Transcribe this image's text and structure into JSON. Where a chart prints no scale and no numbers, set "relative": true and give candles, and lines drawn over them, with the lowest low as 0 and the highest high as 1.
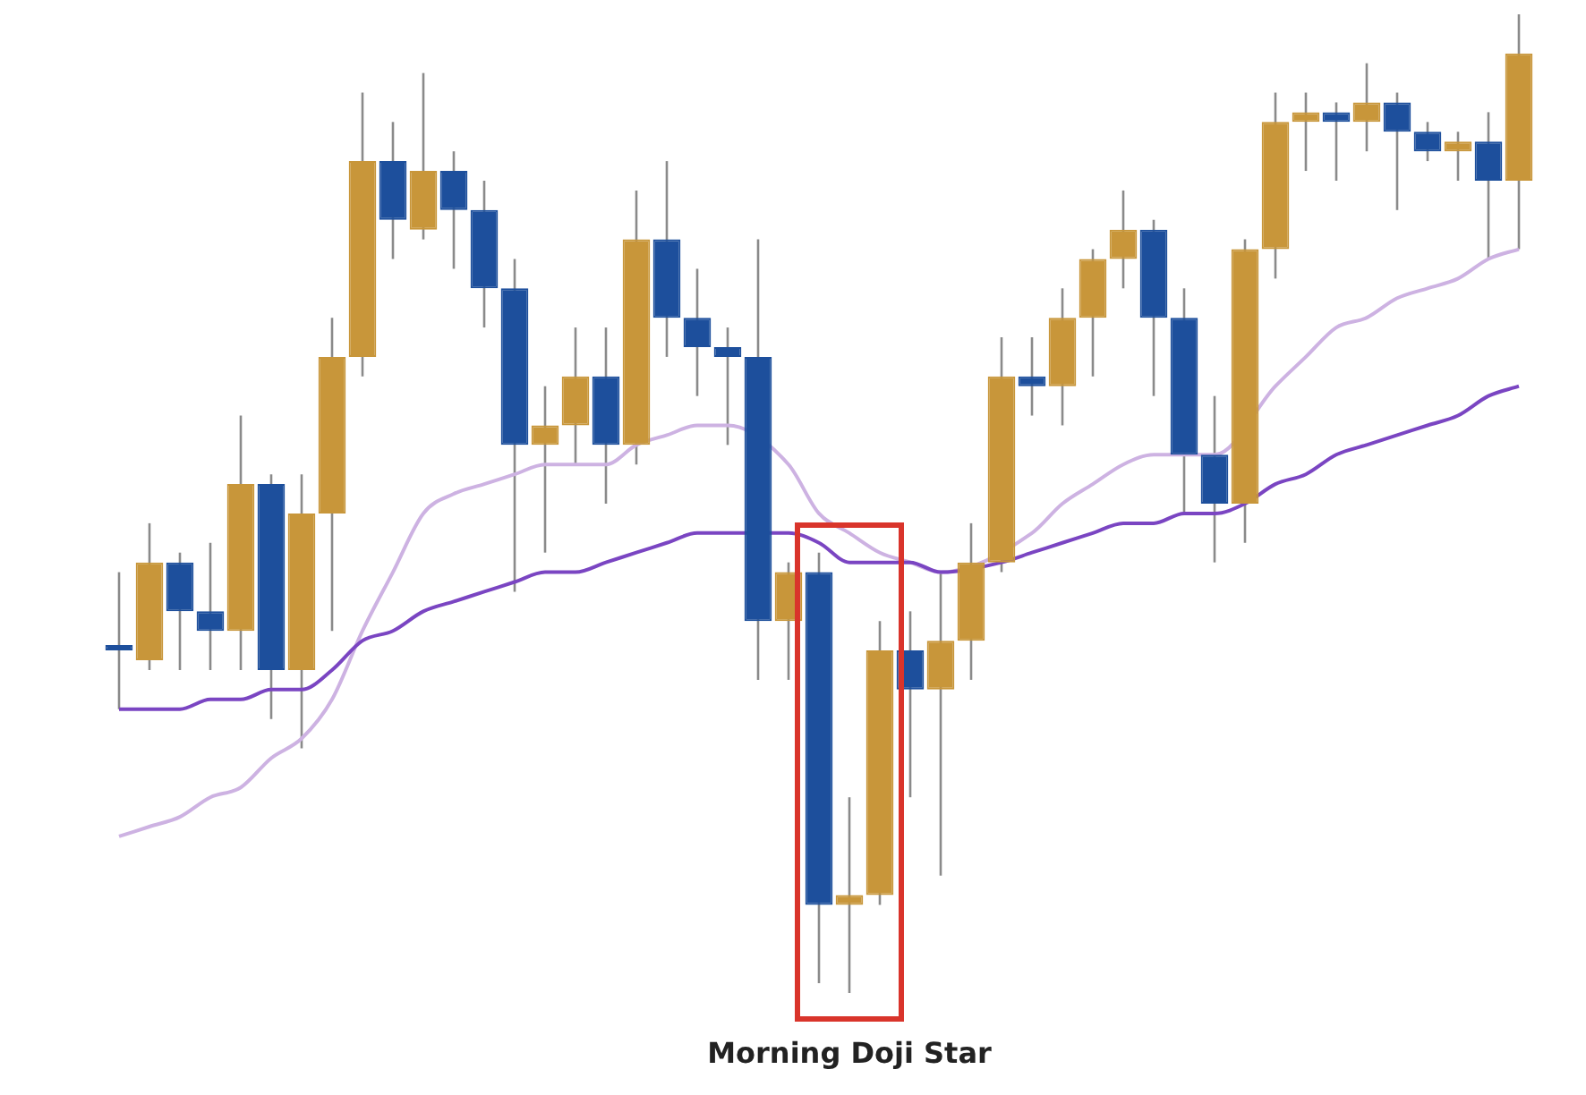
{
  "chart_data": {
    "type": "candlestick",
    "relative": true,
    "legend": false,
    "categories": [
      null,
      null,
      null,
      null,
      null,
      null,
      null,
      null,
      null,
      null,
      null,
      null,
      null,
      null,
      null,
      null,
      null,
      null,
      null,
      null,
      null,
      null,
      null,
      null,
      null,
      null,
      null,
      null,
      null,
      null,
      null,
      null,
      null,
      null,
      null,
      null,
      null,
      null,
      null,
      null,
      null,
      null,
      null,
      null,
      null,
      null,
      null
    ],
    "ohlc": [
      [
        0.35,
        0.43,
        0.29,
        0.35
      ],
      [
        0.34,
        0.48,
        0.33,
        0.44
      ],
      [
        0.44,
        0.45,
        0.33,
        0.39
      ],
      [
        0.39,
        0.46,
        0.33,
        0.37
      ],
      [
        0.37,
        0.59,
        0.33,
        0.52
      ],
      [
        0.52,
        0.53,
        0.28,
        0.33
      ],
      [
        0.33,
        0.53,
        0.25,
        0.49
      ],
      [
        0.49,
        0.69,
        0.37,
        0.65
      ],
      [
        0.65,
        0.92,
        0.63,
        0.85
      ],
      [
        0.85,
        0.89,
        0.75,
        0.79
      ],
      [
        0.78,
        0.94,
        0.77,
        0.84
      ],
      [
        0.84,
        0.86,
        0.74,
        0.8
      ],
      [
        0.8,
        0.83,
        0.68,
        0.72
      ],
      [
        0.72,
        0.75,
        0.41,
        0.56
      ],
      [
        0.56,
        0.62,
        0.45,
        0.58
      ],
      [
        0.58,
        0.68,
        0.54,
        0.63
      ],
      [
        0.63,
        0.68,
        0.5,
        0.56
      ],
      [
        0.56,
        0.82,
        0.54,
        0.77
      ],
      [
        0.77,
        0.85,
        0.65,
        0.69
      ],
      [
        0.69,
        0.74,
        0.61,
        0.66
      ],
      [
        0.66,
        0.68,
        0.56,
        0.65
      ],
      [
        0.65,
        0.77,
        0.32,
        0.38
      ],
      [
        0.38,
        0.44,
        0.32,
        0.43
      ],
      [
        0.43,
        0.45,
        0.01,
        0.09
      ],
      [
        0.09,
        0.2,
        0,
        0.1
      ],
      [
        0.1,
        0.38,
        0.09,
        0.35
      ],
      [
        0.35,
        0.39,
        0.2,
        0.31
      ],
      [
        0.31,
        0.43,
        0.12,
        0.36
      ],
      [
        0.36,
        0.48,
        0.32,
        0.44
      ],
      [
        0.44,
        0.67,
        0.43,
        0.63
      ],
      [
        0.63,
        0.67,
        0.59,
        0.62
      ],
      [
        0.62,
        0.72,
        0.58,
        0.69
      ],
      [
        0.69,
        0.76,
        0.63,
        0.75
      ],
      [
        0.75,
        0.82,
        0.72,
        0.78
      ],
      [
        0.78,
        0.79,
        0.61,
        0.69
      ],
      [
        0.69,
        0.72,
        0.49,
        0.55
      ],
      [
        0.55,
        0.61,
        0.44,
        0.5
      ],
      [
        0.5,
        0.77,
        0.46,
        0.76
      ],
      [
        0.76,
        0.92,
        0.73,
        0.89
      ],
      [
        0.89,
        0.92,
        0.84,
        0.9
      ],
      [
        0.9,
        0.91,
        0.83,
        0.89
      ],
      [
        0.89,
        0.95,
        0.86,
        0.91
      ],
      [
        0.91,
        0.92,
        0.8,
        0.88
      ],
      [
        0.88,
        0.89,
        0.85,
        0.86
      ],
      [
        0.86,
        0.88,
        0.83,
        0.87
      ],
      [
        0.87,
        0.9,
        0.75,
        0.83
      ],
      [
        0.83,
        1,
        0.76,
        0.96
      ]
    ],
    "colors": [
      "#1d4f9c",
      "#c8963a",
      "#1d4f9c",
      "#1d4f9c",
      "#c8963a",
      "#1d4f9c",
      "#c8963a",
      "#c8963a",
      "#c8963a",
      "#1d4f9c",
      "#c8963a",
      "#1d4f9c",
      "#1d4f9c",
      "#1d4f9c",
      "#c8963a",
      "#c8963a",
      "#1d4f9c",
      "#c8963a",
      "#1d4f9c",
      "#1d4f9c",
      "#1d4f9c",
      "#1d4f9c",
      "#c8963a",
      "#1d4f9c",
      "#c8963a",
      "#c8963a",
      "#1d4f9c",
      "#c8963a",
      "#c8963a",
      "#c8963a",
      "#1d4f9c",
      "#c8963a",
      "#c8963a",
      "#c8963a",
      "#1d4f9c",
      "#1d4f9c",
      "#1d4f9c",
      "#c8963a",
      "#c8963a",
      "#c8963a",
      "#1d4f9c",
      "#c8963a",
      "#1d4f9c",
      "#1d4f9c",
      "#c8963a",
      "#1d4f9c",
      "#c8963a"
    ],
    "series": [
      {
        "type": "line",
        "color": "#7a45c2",
        "values": [
          0.29,
          0.29,
          0.29,
          0.3,
          0.3,
          0.31,
          0.31,
          0.33,
          0.36,
          0.37,
          0.39,
          0.4,
          0.41,
          0.42,
          0.43,
          0.43,
          0.44,
          0.45,
          0.46,
          0.47,
          0.47,
          null,
          0.47,
          0.46,
          0.44,
          0.44,
          0.44,
          0.43,
          null,
          0.44,
          0.45,
          0.46,
          0.47,
          0.48,
          0.48,
          0.49,
          0.49,
          0.5,
          0.52,
          0.53,
          0.55,
          0.56,
          0.57,
          0.58,
          0.59,
          0.61,
          0.62
        ]
      },
      {
        "type": "line",
        "color": "#cdb2e2",
        "values": [
          0.16,
          0.17,
          0.18,
          0.2,
          0.21,
          0.24,
          0.26,
          0.3,
          0.37,
          0.43,
          0.49,
          0.51,
          0.52,
          0.53,
          0.54,
          0.54,
          0.54,
          0.56,
          0.57,
          0.58,
          0.58,
          null,
          0.54,
          0.49,
          0.47,
          0.45,
          0.44,
          0.43,
          null,
          null,
          0.47,
          0.5,
          0.52,
          0.54,
          0.55,
          null,
          0.55,
          null,
          0.62,
          0.65,
          0.68,
          0.69,
          0.71,
          0.72,
          0.73,
          0.75,
          0.76
        ]
      }
    ],
    "annotations": [
      "Morning Doji Star"
    ]
  }
}
